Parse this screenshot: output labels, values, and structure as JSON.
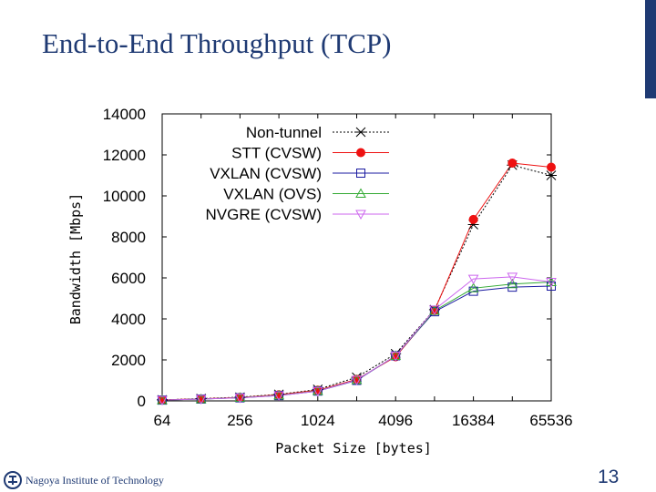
{
  "slide": {
    "title": "End-to-End Throughput (TCP)",
    "footer_institution": "Nagoya Institute of Technology",
    "page_number": "13",
    "colors": {
      "title": "#1f3a73",
      "accent_bar": "#1f3a73"
    }
  },
  "chart_data": {
    "type": "line",
    "title": "",
    "xlabel": "Packet Size [bytes]",
    "ylabel": "Bandwidth [Mbps]",
    "x": [
      64,
      128,
      256,
      512,
      1024,
      2048,
      4096,
      8192,
      16384,
      32768,
      65536
    ],
    "x_scale": "log2",
    "xlim": [
      64,
      65536
    ],
    "ylim": [
      0,
      14000
    ],
    "x_ticks": [
      64,
      256,
      1024,
      4096,
      16384,
      65536
    ],
    "x_tick_labels": [
      "64",
      "256",
      "1024",
      "4096",
      "16384",
      "65536"
    ],
    "y_ticks": [
      0,
      2000,
      4000,
      6000,
      8000,
      10000,
      12000,
      14000
    ],
    "y_tick_labels": [
      "0",
      "2000",
      "4000",
      "6000",
      "8000",
      "10000",
      "12000",
      "14000"
    ],
    "legend_position": "top-right",
    "series": [
      {
        "name": "Non-tunnel",
        "color": "#000000",
        "dash": "2,2",
        "marker": "cross",
        "values": [
          50,
          110,
          180,
          320,
          560,
          1150,
          2300,
          4450,
          8600,
          11500,
          11000
        ]
      },
      {
        "name": "STT (CVSW)",
        "color": "#ee1111",
        "dash": "",
        "marker": "dot",
        "values": [
          50,
          100,
          170,
          300,
          520,
          1050,
          2150,
          4400,
          8850,
          11600,
          11400
        ]
      },
      {
        "name": "VXLAN (CVSW)",
        "color": "#1a1aa0",
        "dash": "",
        "marker": "square",
        "values": [
          40,
          90,
          150,
          260,
          480,
          1000,
          2200,
          4350,
          5350,
          5550,
          5600
        ]
      },
      {
        "name": "VXLAN (OVS)",
        "color": "#33aa33",
        "dash": "",
        "marker": "triangle",
        "values": [
          40,
          90,
          160,
          270,
          490,
          1020,
          2200,
          4400,
          5500,
          5700,
          5800
        ]
      },
      {
        "name": "NVGRE (CVSW)",
        "color": "#cc66ee",
        "dash": "",
        "marker": "triangle-down",
        "values": [
          40,
          90,
          150,
          260,
          480,
          1020,
          2200,
          4450,
          5950,
          6050,
          5800
        ]
      }
    ]
  }
}
